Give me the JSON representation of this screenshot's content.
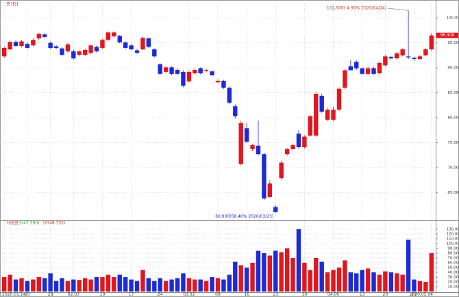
{
  "chart_data": [
    {
      "type": "candlestick",
      "title": "종가단",
      "up_color": "#e3161e",
      "down_color": "#1d2bd6",
      "categories": [
        "2020.01.14",
        null,
        null,
        null,
        "20",
        null,
        null,
        null,
        "28",
        null,
        null,
        null,
        "02.03",
        null,
        null,
        null,
        null,
        "10",
        null,
        null,
        null,
        null,
        "17",
        null,
        null,
        null,
        null,
        "24",
        null,
        null,
        null,
        null,
        "03.02",
        null,
        null,
        null,
        null,
        "09",
        null,
        null,
        null,
        null,
        "16",
        null,
        null,
        null,
        null,
        "23",
        null,
        null,
        null,
        null,
        "30",
        null,
        null,
        null,
        null,
        "04.06",
        null,
        null,
        null,
        null,
        "13",
        null,
        null,
        null,
        "20",
        null,
        null,
        null,
        null,
        "27",
        null,
        null,
        "2020.05.04"
      ],
      "open": [
        92300,
        93700,
        95200,
        94400,
        94800,
        94500,
        95900,
        96700,
        95000,
        94300,
        93900,
        93300,
        93300,
        92600,
        92600,
        93000,
        94200,
        94000,
        95600,
        96300,
        96400,
        95100,
        94500,
        93500,
        93700,
        95900,
        93700,
        90700,
        89200,
        90100,
        89600,
        89200,
        87300,
        88900,
        89900,
        89400,
        89300,
        87100,
        87400,
        86000,
        82300,
        70700,
        77900,
        73700,
        74400,
        72700,
        64100,
        62100,
        67900,
        72700,
        73700,
        76800,
        74100,
        76400,
        76400,
        84400,
        79600,
        79600,
        81600,
        86000,
        90300,
        91200,
        89900,
        88800,
        89900,
        88900,
        90500,
        92200,
        91900,
        92500,
        92300,
        92000,
        91800,
        92500,
        93700
      ],
      "high": [
        94300,
        95500,
        95500,
        95600,
        95200,
        95900,
        97000,
        97000,
        95300,
        94600,
        94200,
        95000,
        93600,
        93500,
        93900,
        94700,
        94500,
        95800,
        97300,
        97400,
        96600,
        95300,
        94800,
        93800,
        96300,
        96100,
        93900,
        91000,
        90400,
        90300,
        89900,
        89500,
        89500,
        89900,
        90100,
        89800,
        89500,
        87700,
        87600,
        86300,
        82700,
        79400,
        79000,
        74800,
        79400,
        73000,
        67500,
        62500,
        71400,
        74000,
        74800,
        77500,
        76500,
        80600,
        85100,
        84800,
        82000,
        82200,
        86100,
        89800,
        91500,
        91500,
        90200,
        90200,
        90200,
        91300,
        92600,
        92400,
        93200,
        93900,
        101500,
        92300,
        92600,
        94000,
        97000
      ],
      "low": [
        92000,
        93400,
        94200,
        94100,
        93800,
        94200,
        95600,
        96000,
        93800,
        93700,
        92300,
        93000,
        91600,
        92300,
        92300,
        92700,
        93000,
        93800,
        95400,
        96000,
        94900,
        93800,
        93500,
        92800,
        93500,
        94000,
        92100,
        88500,
        88900,
        88500,
        88500,
        86100,
        87000,
        88600,
        88700,
        89100,
        88300,
        86900,
        85800,
        82700,
        79800,
        70400,
        74900,
        73300,
        72400,
        63500,
        63900,
        60900,
        67500,
        72400,
        73400,
        73800,
        73800,
        76200,
        76200,
        81000,
        79300,
        79300,
        81300,
        85700,
        89500,
        89600,
        88500,
        88500,
        88600,
        88600,
        90200,
        91600,
        91600,
        92300,
        91800,
        91400,
        91500,
        92300,
        93400
      ],
      "close": [
        94000,
        95200,
        94400,
        95300,
        94000,
        95600,
        96800,
        96200,
        94000,
        94000,
        92600,
        94700,
        91900,
        93300,
        93600,
        94500,
        93300,
        95600,
        97100,
        97100,
        95100,
        94000,
        93700,
        93000,
        96000,
        94200,
        92300,
        88800,
        90100,
        88800,
        88800,
        86400,
        89200,
        89600,
        88900,
        89600,
        88500,
        87400,
        86000,
        83000,
        80300,
        78900,
        75200,
        74500,
        72700,
        63800,
        66800,
        61100,
        71000,
        73700,
        74500,
        74100,
        76200,
        80300,
        84800,
        81200,
        81600,
        81600,
        85800,
        89500,
        89500,
        89900,
        88800,
        89900,
        88800,
        91000,
        92300,
        91900,
        92900,
        93700,
        92100,
        91800,
        92300,
        93700,
        96500
      ],
      "ylim": [
        59700,
        102500
      ],
      "yticks": [
        {
          "value": 65000,
          "label": "65,000"
        },
        {
          "value": 70000,
          "label": "70,000"
        },
        {
          "value": 75000,
          "label": "75,000"
        },
        {
          "value": 80000,
          "label": "80,000"
        },
        {
          "value": 85000,
          "label": "85,000"
        },
        {
          "value": 90000,
          "label": "90,000"
        },
        {
          "value": 95000,
          "label": "95,000"
        },
        {
          "value": 100000,
          "label": "100,000"
        }
      ],
      "high_label": "101,500(-4.93% 2020/04/24)",
      "low_label": "60,900(58.46% 2020/03/23)",
      "last_label": "96,500",
      "grid": true
    },
    {
      "type": "bar",
      "title": "거래량",
      "legend": [
        {
          "text": "5(47,590)",
          "color": "#2e9b2e"
        },
        {
          "text": "10(48,355)",
          "color": "#c0392b"
        }
      ],
      "values": [
        30000,
        35000,
        25000,
        28000,
        22000,
        25000,
        30000,
        28000,
        38000,
        22000,
        28000,
        22000,
        25000,
        24000,
        28000,
        25000,
        30000,
        30000,
        35000,
        30000,
        35000,
        30000,
        25000,
        22000,
        45000,
        28000,
        22000,
        28000,
        22000,
        25000,
        28000,
        38000,
        28000,
        25000,
        25000,
        22000,
        30000,
        28000,
        25000,
        35000,
        62000,
        55000,
        50000,
        60000,
        85000,
        80000,
        75000,
        85000,
        82000,
        90000,
        70000,
        130000,
        60000,
        45000,
        70000,
        62000,
        40000,
        45000,
        50000,
        65000,
        40000,
        38000,
        45000,
        48000,
        40000,
        35000,
        42000,
        40000,
        38000,
        35000,
        108000,
        25000,
        22000,
        20000,
        80000
      ],
      "ylim": [
        0,
        137000
      ],
      "yticks": [
        {
          "value": 10000,
          "label": "10,000"
        },
        {
          "value": 20000,
          "label": "20,000"
        },
        {
          "value": 30000,
          "label": "30,000"
        },
        {
          "value": 40000,
          "label": "40,000"
        },
        {
          "value": 50000,
          "label": "50,000"
        },
        {
          "value": 60000,
          "label": "60,000"
        },
        {
          "value": 70000,
          "label": "70,000"
        },
        {
          "value": 80000,
          "label": "80,000"
        },
        {
          "value": 90000,
          "label": "90,000"
        },
        {
          "value": 100000,
          "label": "100,000"
        },
        {
          "value": 110000,
          "label": "110,000"
        },
        {
          "value": 120000,
          "label": "120,000"
        },
        {
          "value": 130000,
          "label": "130,000"
        }
      ],
      "grid": true
    }
  ]
}
